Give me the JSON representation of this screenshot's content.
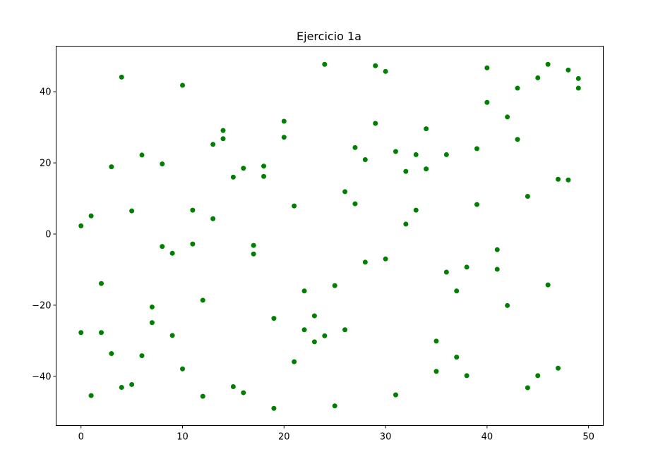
{
  "chart_data": {
    "type": "scatter",
    "title": "Ejercicio 1a",
    "xlabel": "",
    "ylabel": "",
    "xlim": [
      -2.45,
      51.45
    ],
    "ylim": [
      -53.8,
      52.8
    ],
    "xticks": [
      0,
      10,
      20,
      30,
      40,
      50
    ],
    "xtick_labels": [
      "0",
      "10",
      "20",
      "30",
      "40",
      "50"
    ],
    "yticks": [
      -40,
      -20,
      0,
      20,
      40
    ],
    "ytick_labels": [
      "−40",
      "−20",
      "0",
      "20",
      "40"
    ],
    "grid": false,
    "legend": "none",
    "marker_color": "#008000",
    "series": [
      {
        "points": [
          [
            0,
            2.3
          ],
          [
            0,
            -27.7
          ],
          [
            1,
            5.1
          ],
          [
            1,
            -45.4
          ],
          [
            2,
            -13.9
          ],
          [
            2,
            -27.7
          ],
          [
            3,
            18.9
          ],
          [
            3,
            -33.6
          ],
          [
            4,
            44.1
          ],
          [
            4,
            -43.1
          ],
          [
            5,
            6.5
          ],
          [
            5,
            -42.3
          ],
          [
            6,
            22.2
          ],
          [
            6,
            -34.2
          ],
          [
            7,
            -20.5
          ],
          [
            7,
            -24.9
          ],
          [
            8,
            19.7
          ],
          [
            8,
            -3.5
          ],
          [
            9,
            -5.4
          ],
          [
            9,
            -28.5
          ],
          [
            10,
            41.8
          ],
          [
            10,
            -37.9
          ],
          [
            11,
            6.7
          ],
          [
            11,
            -2.8
          ],
          [
            12,
            -18.6
          ],
          [
            12,
            -45.6
          ],
          [
            13,
            25.2
          ],
          [
            13,
            4.3
          ],
          [
            14,
            29.1
          ],
          [
            14,
            26.8
          ],
          [
            15,
            16.0
          ],
          [
            15,
            -42.9
          ],
          [
            16,
            18.5
          ],
          [
            16,
            -44.6
          ],
          [
            17,
            -3.2
          ],
          [
            17,
            -5.6
          ],
          [
            18,
            19.1
          ],
          [
            18,
            16.2
          ],
          [
            19,
            -23.7
          ],
          [
            19,
            -49.0
          ],
          [
            20,
            31.7
          ],
          [
            20,
            27.2
          ],
          [
            21,
            7.9
          ],
          [
            21,
            -35.9
          ],
          [
            22,
            -16.0
          ],
          [
            22,
            -26.9
          ],
          [
            23,
            -23.0
          ],
          [
            23,
            -30.3
          ],
          [
            24,
            47.7
          ],
          [
            24,
            -28.6
          ],
          [
            25,
            -14.5
          ],
          [
            25,
            -48.3
          ],
          [
            26,
            11.9
          ],
          [
            26,
            -26.9
          ],
          [
            27,
            24.3
          ],
          [
            27,
            8.5
          ],
          [
            28,
            20.9
          ],
          [
            28,
            -7.9
          ],
          [
            29,
            47.3
          ],
          [
            29,
            31.1
          ],
          [
            30,
            45.7
          ],
          [
            30,
            -7.0
          ],
          [
            31,
            23.2
          ],
          [
            31,
            -45.2
          ],
          [
            32,
            17.6
          ],
          [
            32,
            2.8
          ],
          [
            33,
            22.3
          ],
          [
            33,
            6.7
          ],
          [
            34,
            29.6
          ],
          [
            34,
            18.3
          ],
          [
            35,
            -30.1
          ],
          [
            35,
            -38.6
          ],
          [
            36,
            22.3
          ],
          [
            36,
            -10.7
          ],
          [
            37,
            -16.0
          ],
          [
            37,
            -34.6
          ],
          [
            38,
            -9.3
          ],
          [
            38,
            -39.8
          ],
          [
            39,
            24.0
          ],
          [
            39,
            8.3
          ],
          [
            40,
            46.7
          ],
          [
            40,
            37.0
          ],
          [
            41,
            -4.4
          ],
          [
            41,
            -9.9
          ],
          [
            42,
            32.9
          ],
          [
            42,
            -20.1
          ],
          [
            43,
            41.0
          ],
          [
            43,
            26.6
          ],
          [
            44,
            10.6
          ],
          [
            44,
            -43.2
          ],
          [
            45,
            43.9
          ],
          [
            45,
            -39.8
          ],
          [
            46,
            47.7
          ],
          [
            46,
            -14.3
          ],
          [
            47,
            15.4
          ],
          [
            47,
            -37.7
          ],
          [
            48,
            46.1
          ],
          [
            48,
            15.2
          ],
          [
            49,
            43.7
          ],
          [
            49,
            41.0
          ]
        ]
      }
    ]
  }
}
